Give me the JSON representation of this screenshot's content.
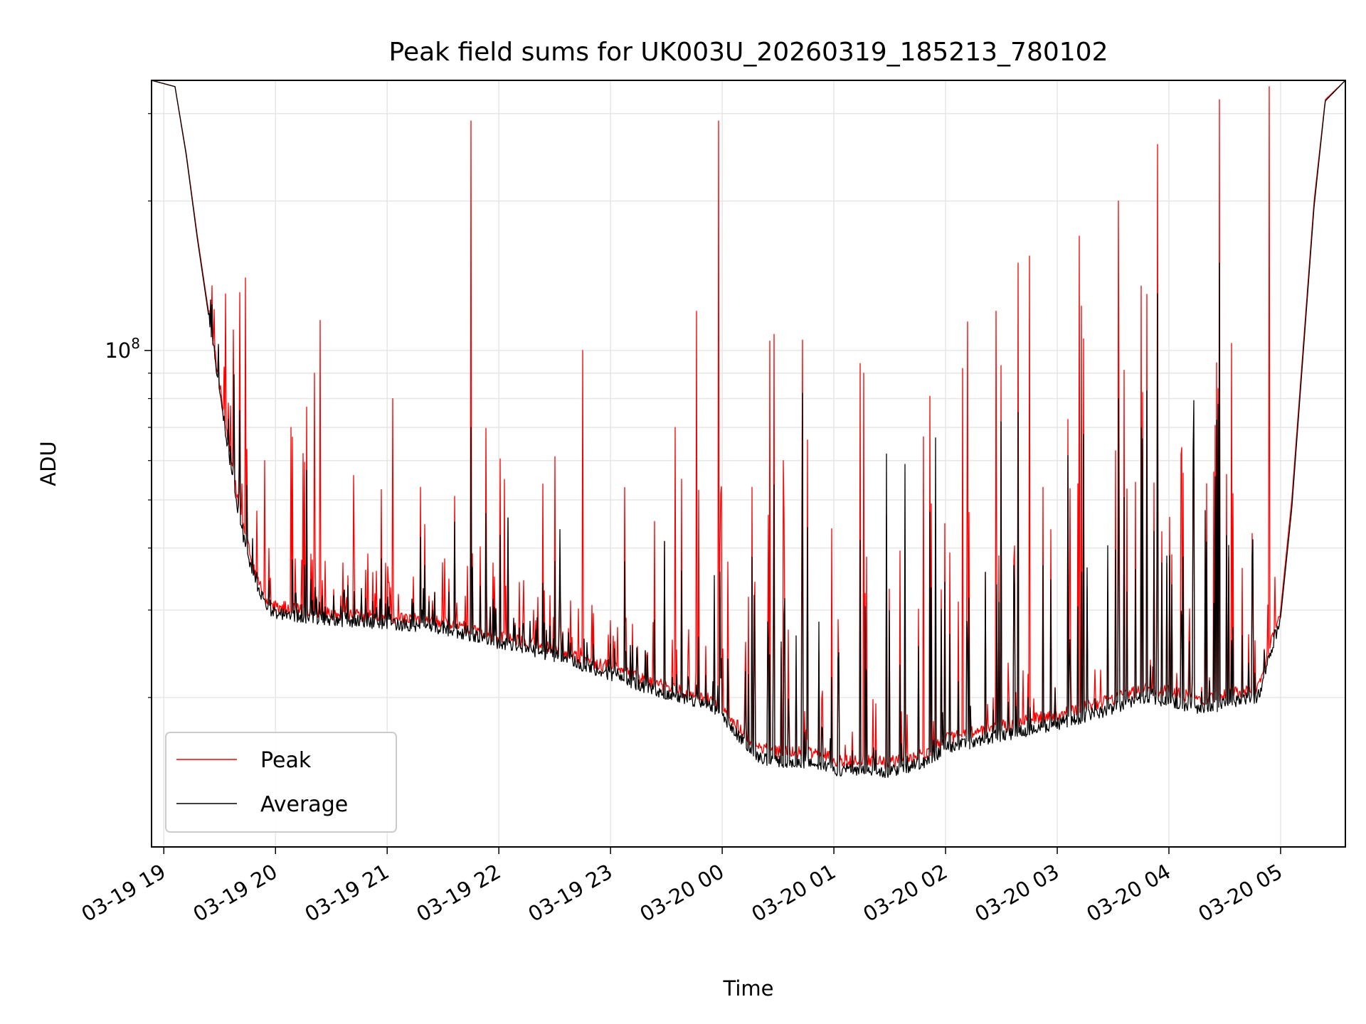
{
  "chart_data": {
    "type": "line",
    "title": "Peak field sums for UK003U_20260319_185213_780102",
    "xlabel": "Time",
    "ylabel": "ADU",
    "yscale": "log",
    "ylim": [
      10000000,
      350000000
    ],
    "xlim_hours": [
      -0.11,
      10.58
    ],
    "grid": true,
    "legend_position": "lower-left",
    "x_ticks": [
      {
        "hour": 0,
        "label": "03-19 19"
      },
      {
        "hour": 1,
        "label": "03-19 20"
      },
      {
        "hour": 2,
        "label": "03-19 21"
      },
      {
        "hour": 3,
        "label": "03-19 22"
      },
      {
        "hour": 4,
        "label": "03-19 23"
      },
      {
        "hour": 5,
        "label": "03-20 00"
      },
      {
        "hour": 6,
        "label": "03-20 01"
      },
      {
        "hour": 7,
        "label": "03-20 02"
      },
      {
        "hour": 8,
        "label": "03-20 03"
      },
      {
        "hour": 9,
        "label": "03-20 04"
      },
      {
        "hour": 10,
        "label": "03-20 05"
      }
    ],
    "y_ticks": [
      {
        "value": 100000000,
        "label_base": "10",
        "label_exp": "8"
      }
    ],
    "y_minor_ticks": [
      20000000,
      30000000,
      40000000,
      50000000,
      60000000,
      70000000,
      80000000,
      90000000,
      200000000,
      300000000
    ],
    "series": [
      {
        "name": "Peak",
        "color": "#ff0000",
        "baseline": [
          [
            -0.11,
            350000000
          ],
          [
            0.1,
            340000000
          ],
          [
            0.2,
            250000000
          ],
          [
            0.3,
            170000000
          ],
          [
            0.4,
            120000000
          ],
          [
            0.5,
            85000000
          ],
          [
            0.6,
            60000000
          ],
          [
            0.7,
            45000000
          ],
          [
            0.8,
            37000000
          ],
          [
            0.9,
            32000000
          ],
          [
            1.0,
            30500000
          ],
          [
            1.5,
            29500000
          ],
          [
            2.0,
            29000000
          ],
          [
            2.5,
            28500000
          ],
          [
            3.0,
            26500000
          ],
          [
            3.5,
            25000000
          ],
          [
            4.0,
            23000000
          ],
          [
            4.5,
            21000000
          ],
          [
            4.9,
            19800000
          ],
          [
            5.1,
            18000000
          ],
          [
            5.3,
            16000000
          ],
          [
            5.5,
            15500000
          ],
          [
            5.7,
            15500000
          ],
          [
            5.9,
            15500000
          ],
          [
            6.0,
            14900000
          ],
          [
            6.2,
            14900000
          ],
          [
            6.5,
            14800000
          ],
          [
            6.8,
            15400000
          ],
          [
            7.0,
            16500000
          ],
          [
            7.5,
            17500000
          ],
          [
            8.0,
            18500000
          ],
          [
            8.5,
            19800000
          ],
          [
            8.8,
            21000000
          ],
          [
            9.3,
            19800000
          ],
          [
            9.8,
            21000000
          ],
          [
            10.0,
            30000000
          ],
          [
            10.1,
            50000000
          ],
          [
            10.2,
            100000000
          ],
          [
            10.3,
            200000000
          ],
          [
            10.4,
            320000000
          ],
          [
            10.58,
            350000000
          ]
        ],
        "spikes": [
          [
            0.43,
            135000000
          ],
          [
            0.55,
            130000000
          ],
          [
            0.62,
            110000000
          ],
          [
            0.73,
            140000000
          ],
          [
            0.9,
            60000000
          ],
          [
            1.14,
            70000000
          ],
          [
            1.25,
            62000000
          ],
          [
            1.35,
            90000000
          ],
          [
            1.4,
            115000000
          ],
          [
            1.7,
            56000000
          ],
          [
            2.05,
            80000000
          ],
          [
            2.3,
            53000000
          ],
          [
            2.75,
            290000000
          ],
          [
            3.05,
            55000000
          ],
          [
            3.75,
            100000000
          ],
          [
            4.58,
            70000000
          ],
          [
            4.77,
            120000000
          ],
          [
            4.97,
            290000000
          ],
          [
            5.27,
            53000000
          ],
          [
            5.55,
            60000000
          ],
          [
            5.72,
            105000000
          ],
          [
            6.27,
            90000000
          ],
          [
            6.8,
            67000000
          ],
          [
            7.15,
            92000000
          ],
          [
            7.45,
            120000000
          ],
          [
            7.65,
            150000000
          ],
          [
            7.75,
            155000000
          ],
          [
            8.2,
            170000000
          ],
          [
            8.55,
            200000000
          ],
          [
            8.9,
            260000000
          ],
          [
            9.45,
            320000000
          ],
          [
            9.9,
            340000000
          ]
        ]
      },
      {
        "name": "Average",
        "color": "#000000",
        "baseline": [
          [
            -0.11,
            350000000
          ],
          [
            0.1,
            340000000
          ],
          [
            0.2,
            248000000
          ],
          [
            0.3,
            168000000
          ],
          [
            0.4,
            118000000
          ],
          [
            0.5,
            83000000
          ],
          [
            0.6,
            58000000
          ],
          [
            0.7,
            43000000
          ],
          [
            0.8,
            35500000
          ],
          [
            0.9,
            31000000
          ],
          [
            1.0,
            29500000
          ],
          [
            1.5,
            28700000
          ],
          [
            2.0,
            28200000
          ],
          [
            2.5,
            27600000
          ],
          [
            3.0,
            25800000
          ],
          [
            3.5,
            24300000
          ],
          [
            4.0,
            22300000
          ],
          [
            4.5,
            20300000
          ],
          [
            4.9,
            19200000
          ],
          [
            5.1,
            17300000
          ],
          [
            5.3,
            15200000
          ],
          [
            5.5,
            14800000
          ],
          [
            5.7,
            14800000
          ],
          [
            5.9,
            14700000
          ],
          [
            6.0,
            14300000
          ],
          [
            6.2,
            14300000
          ],
          [
            6.5,
            14200000
          ],
          [
            6.8,
            14800000
          ],
          [
            7.0,
            15800000
          ],
          [
            7.5,
            16800000
          ],
          [
            8.0,
            17700000
          ],
          [
            8.5,
            19000000
          ],
          [
            8.8,
            20100000
          ],
          [
            9.3,
            19000000
          ],
          [
            9.8,
            20100000
          ],
          [
            10.0,
            29000000
          ],
          [
            10.1,
            48000000
          ],
          [
            10.2,
            97000000
          ],
          [
            10.3,
            195000000
          ],
          [
            10.4,
            318000000
          ],
          [
            10.58,
            350000000
          ]
        ],
        "spikes": [
          [
            2.75,
            70000000
          ],
          [
            5.72,
            82000000
          ],
          [
            7.65,
            75000000
          ],
          [
            8.55,
            80000000
          ],
          [
            8.9,
            130000000
          ],
          [
            9.45,
            150000000
          ]
        ]
      }
    ]
  }
}
